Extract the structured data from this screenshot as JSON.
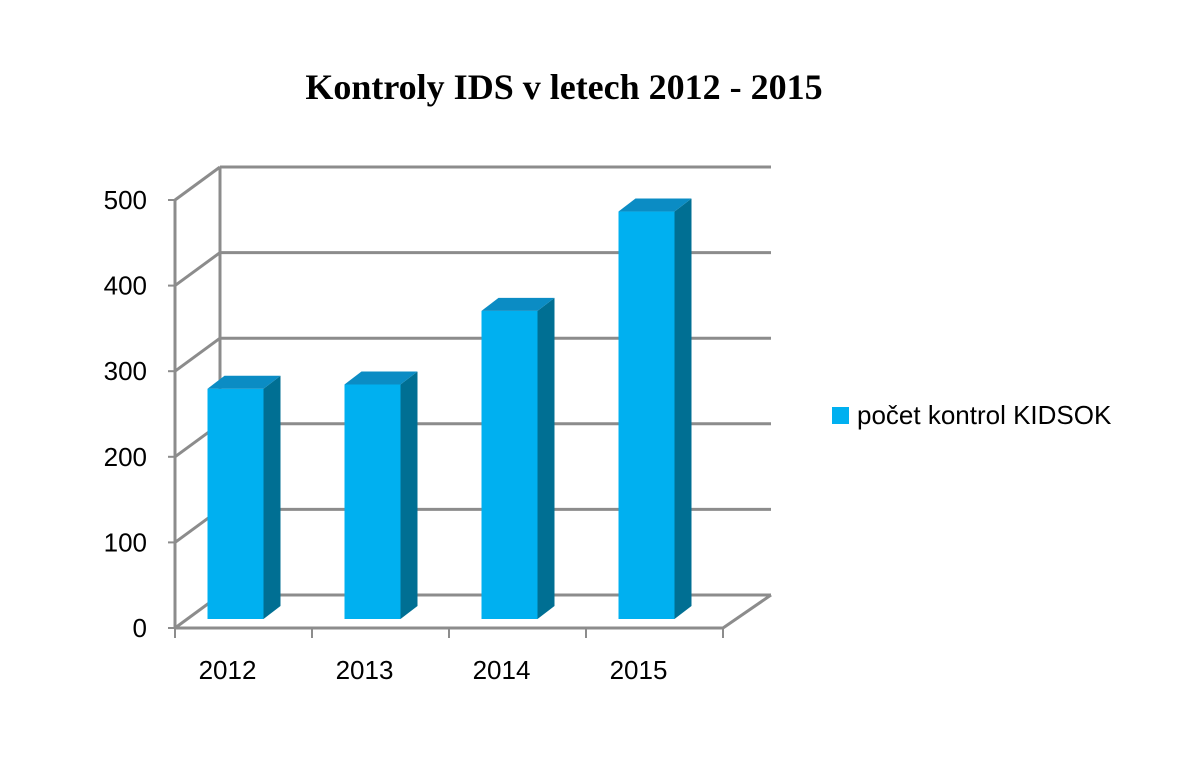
{
  "chart_data": {
    "type": "bar",
    "title": "Kontroly IDS v letech 2012 - 2015",
    "categories": [
      "2012",
      "2013",
      "2014",
      "2015"
    ],
    "series": [
      {
        "name": "počet kontrol KIDSOK",
        "values": [
          269,
          274,
          360,
          476
        ],
        "color": "#00b0f0"
      }
    ],
    "xlabel": "",
    "ylabel": "",
    "ylim": [
      0,
      500
    ],
    "yticks": [
      "0",
      "100",
      "200",
      "300",
      "400",
      "500"
    ],
    "grid": true,
    "style": "3d-column",
    "legend": {
      "position": "right"
    },
    "colors": {
      "front": "#00b0f0",
      "side": "#006f93",
      "top": "#0b8cc4",
      "grid": "#8c8c8c"
    }
  }
}
